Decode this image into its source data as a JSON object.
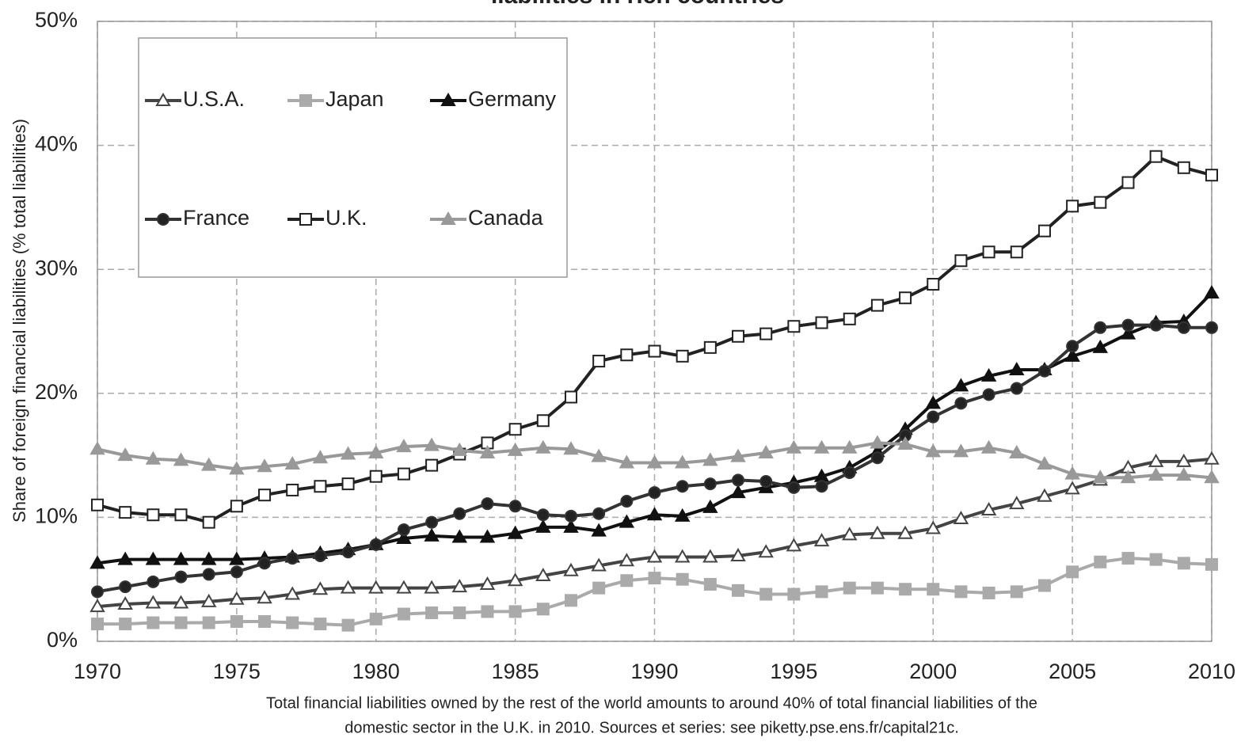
{
  "chart_data": {
    "type": "line",
    "title": "liabilities in rich countries",
    "ylabel": "Share of foreign financial liabilities (% total liabilities)",
    "notes": [
      "Total financial liabilities owned by the rest of the world amounts to around 40% of total financial liabilities of the",
      "domestic sector in the U.K. in 2010. Sources et series: see piketty.pse.ens.fr/capital21c."
    ],
    "x": [
      1970,
      1971,
      1972,
      1973,
      1974,
      1975,
      1976,
      1977,
      1978,
      1979,
      1980,
      1981,
      1982,
      1983,
      1984,
      1985,
      1986,
      1987,
      1988,
      1989,
      1990,
      1991,
      1992,
      1993,
      1994,
      1995,
      1996,
      1997,
      1998,
      1999,
      2000,
      2001,
      2002,
      2003,
      2004,
      2005,
      2006,
      2007,
      2008,
      2009,
      2010
    ],
    "xlim": [
      1970,
      2010
    ],
    "xticks": [
      1970,
      1975,
      1980,
      1985,
      1990,
      1995,
      2000,
      2005,
      2010
    ],
    "ylim": [
      0,
      50
    ],
    "yticks": [
      {
        "value": 0,
        "label": "0%"
      },
      {
        "value": 10,
        "label": "10%"
      },
      {
        "value": 20,
        "label": "20%"
      },
      {
        "value": 30,
        "label": "30%"
      },
      {
        "value": 40,
        "label": "40%"
      },
      {
        "value": 50,
        "label": "50%"
      }
    ],
    "grid": true,
    "legend": "upper left",
    "series": [
      {
        "name": "U.S.A.",
        "color": "#444444",
        "marker": "triangle",
        "marker_fill": "#ffffff",
        "values": [
          2.8,
          3.0,
          3.1,
          3.1,
          3.2,
          3.4,
          3.5,
          3.8,
          4.2,
          4.3,
          4.3,
          4.3,
          4.3,
          4.4,
          4.6,
          4.9,
          5.3,
          5.7,
          6.1,
          6.5,
          6.8,
          6.8,
          6.8,
          6.9,
          7.2,
          7.7,
          8.1,
          8.6,
          8.7,
          8.7,
          9.1,
          9.9,
          10.6,
          11.1,
          11.7,
          12.3,
          13.0,
          14.0,
          14.5,
          14.5,
          14.7
        ]
      },
      {
        "name": "Japan",
        "color": "#aaaaaa",
        "marker": "square",
        "marker_fill": "#aaaaaa",
        "values": [
          1.4,
          1.4,
          1.5,
          1.5,
          1.5,
          1.6,
          1.6,
          1.5,
          1.4,
          1.3,
          1.8,
          2.2,
          2.3,
          2.3,
          2.4,
          2.4,
          2.6,
          3.3,
          4.3,
          4.9,
          5.1,
          5.0,
          4.6,
          4.1,
          3.8,
          3.8,
          4.0,
          4.3,
          4.3,
          4.2,
          4.2,
          4.0,
          3.9,
          4.0,
          4.5,
          5.6,
          6.4,
          6.7,
          6.6,
          6.3,
          6.2
        ]
      },
      {
        "name": "Germany",
        "color": "#111111",
        "marker": "triangle",
        "marker_fill": "#111111",
        "values": [
          6.3,
          6.6,
          6.6,
          6.6,
          6.6,
          6.6,
          6.7,
          6.8,
          7.1,
          7.4,
          7.8,
          8.3,
          8.5,
          8.4,
          8.4,
          8.7,
          9.2,
          9.2,
          8.9,
          9.6,
          10.2,
          10.1,
          10.8,
          12.0,
          12.4,
          12.8,
          13.3,
          14.0,
          15.3,
          17.1,
          19.2,
          20.6,
          21.4,
          21.9,
          21.9,
          23.0,
          23.7,
          24.8,
          25.7,
          25.8,
          28.1
        ]
      },
      {
        "name": "France",
        "color": "#333333",
        "marker": "circle",
        "marker_fill": "#222222",
        "values": [
          4.0,
          4.4,
          4.8,
          5.2,
          5.4,
          5.6,
          6.3,
          6.7,
          6.9,
          7.2,
          7.8,
          9.0,
          9.6,
          10.3,
          11.1,
          10.9,
          10.2,
          10.1,
          10.3,
          11.3,
          12.0,
          12.5,
          12.7,
          13.0,
          12.9,
          12.4,
          12.5,
          13.6,
          14.8,
          16.6,
          18.1,
          19.2,
          19.9,
          20.4,
          21.8,
          23.8,
          25.3,
          25.5,
          25.5,
          25.3,
          25.3
        ]
      },
      {
        "name": "U.K.",
        "color": "#222222",
        "marker": "square",
        "marker_fill": "#ffffff",
        "values": [
          11.0,
          10.4,
          10.2,
          10.2,
          9.6,
          10.9,
          11.8,
          12.2,
          12.5,
          12.7,
          13.3,
          13.5,
          14.2,
          15.1,
          16.0,
          17.1,
          17.8,
          19.7,
          22.6,
          23.1,
          23.4,
          23.0,
          23.7,
          24.6,
          24.8,
          25.4,
          25.7,
          26.0,
          27.1,
          27.7,
          28.8,
          30.7,
          31.4,
          31.4,
          33.1,
          35.1,
          35.4,
          37.0,
          39.1,
          38.2,
          37.6
        ]
      },
      {
        "name": "Canada",
        "color": "#999999",
        "marker": "triangle",
        "marker_fill": "#999999",
        "values": [
          15.5,
          15.0,
          14.7,
          14.6,
          14.2,
          13.9,
          14.1,
          14.3,
          14.8,
          15.1,
          15.2,
          15.7,
          15.8,
          15.4,
          15.2,
          15.4,
          15.6,
          15.5,
          14.9,
          14.4,
          14.4,
          14.4,
          14.6,
          14.9,
          15.2,
          15.6,
          15.6,
          15.6,
          16.0,
          15.9,
          15.3,
          15.3,
          15.6,
          15.2,
          14.3,
          13.5,
          13.2,
          13.2,
          13.4,
          13.4,
          13.2
        ]
      }
    ]
  }
}
